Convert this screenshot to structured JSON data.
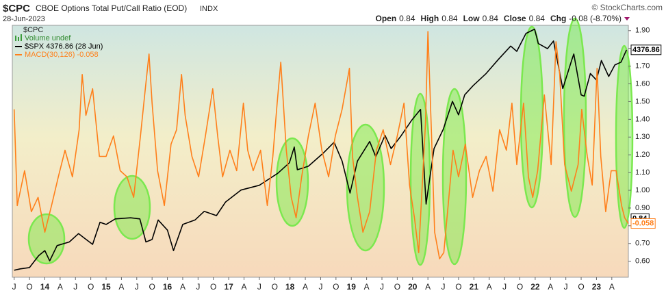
{
  "chart_data": {
    "type": "line",
    "title": "$CPC",
    "subtitle": "CBOE Options Total Put/Call Ratio (EOD)",
    "exchange": "INDX",
    "date": "28-Jun-2023",
    "credit": "© StockCharts.com",
    "quote": [
      {
        "label": "Open",
        "value": "0.84"
      },
      {
        "label": "High",
        "value": "0.84"
      },
      {
        "label": "Low",
        "value": "0.84"
      },
      {
        "label": "Close",
        "value": "0.84"
      },
      {
        "label": "Chg",
        "value": "-0.08 (-8.70%)"
      }
    ],
    "cpc_label": "$CPC",
    "volume_label": "Volume undef",
    "cpc_last": 0.84,
    "xlim": [
      2013.47,
      2023.52
    ],
    "xticks": [
      {
        "value": 2013.5,
        "label": "J"
      },
      {
        "value": 2013.75,
        "label": "O"
      },
      {
        "value": 2014,
        "label": "14"
      },
      {
        "value": 2014.25,
        "label": "A"
      },
      {
        "value": 2014.5,
        "label": "J"
      },
      {
        "value": 2014.75,
        "label": "O"
      },
      {
        "value": 2015,
        "label": "15"
      },
      {
        "value": 2015.25,
        "label": "A"
      },
      {
        "value": 2015.5,
        "label": "J"
      },
      {
        "value": 2015.75,
        "label": "O"
      },
      {
        "value": 2016,
        "label": "16"
      },
      {
        "value": 2016.25,
        "label": "A"
      },
      {
        "value": 2016.5,
        "label": "J"
      },
      {
        "value": 2016.75,
        "label": "O"
      },
      {
        "value": 2017,
        "label": "17"
      },
      {
        "value": 2017.25,
        "label": "A"
      },
      {
        "value": 2017.5,
        "label": "J"
      },
      {
        "value": 2017.75,
        "label": "O"
      },
      {
        "value": 2018,
        "label": "18"
      },
      {
        "value": 2018.25,
        "label": "A"
      },
      {
        "value": 2018.5,
        "label": "J"
      },
      {
        "value": 2018.75,
        "label": "O"
      },
      {
        "value": 2019,
        "label": "19"
      },
      {
        "value": 2019.25,
        "label": "A"
      },
      {
        "value": 2019.5,
        "label": "J"
      },
      {
        "value": 2019.75,
        "label": "O"
      },
      {
        "value": 2020,
        "label": "20"
      },
      {
        "value": 2020.25,
        "label": "A"
      },
      {
        "value": 2020.5,
        "label": "J"
      },
      {
        "value": 2020.75,
        "label": "O"
      },
      {
        "value": 2021,
        "label": "21"
      },
      {
        "value": 2021.25,
        "label": "A"
      },
      {
        "value": 2021.5,
        "label": "J"
      },
      {
        "value": 2021.75,
        "label": "O"
      },
      {
        "value": 2022,
        "label": "22"
      },
      {
        "value": 2022.25,
        "label": "A"
      },
      {
        "value": 2022.5,
        "label": "J"
      },
      {
        "value": 2022.75,
        "label": "O"
      },
      {
        "value": 2023,
        "label": "23"
      },
      {
        "value": 2023.25,
        "label": "A"
      }
    ],
    "ylim": [
      0.51,
      1.93
    ],
    "yticks": [
      {
        "value": 0.6,
        "label": "0.60"
      },
      {
        "value": 0.7,
        "label": "0.70"
      },
      {
        "value": 0.8,
        "label": "0.80"
      },
      {
        "value": 0.9,
        "label": "0.90"
      },
      {
        "value": 1.0,
        "label": "1.00"
      },
      {
        "value": 1.1,
        "label": "1.10"
      },
      {
        "value": 1.2,
        "label": "1.20"
      },
      {
        "value": 1.3,
        "label": "1.30"
      },
      {
        "value": 1.4,
        "label": "1.40"
      },
      {
        "value": 1.5,
        "label": "1.50"
      },
      {
        "value": 1.6,
        "label": "1.60"
      },
      {
        "value": 1.7,
        "label": "1.70"
      },
      {
        "value": 1.8,
        "label": "1.80"
      },
      {
        "value": 1.9,
        "label": "1.90"
      }
    ],
    "y2lim": [
      1630,
      4870
    ],
    "y2log": true,
    "y3lim": [
      -0.32,
      0.91
    ],
    "series": [
      {
        "name": "$SPX 4376.86 (28 Jun)",
        "color": "#000000",
        "axis": "y2",
        "x": [
          2013.5,
          2013.6,
          2013.75,
          2013.9,
          2014.0,
          2014.08,
          2014.2,
          2014.4,
          2014.55,
          2014.65,
          2014.78,
          2014.9,
          2015.0,
          2015.15,
          2015.4,
          2015.55,
          2015.65,
          2015.75,
          2015.85,
          2016.0,
          2016.1,
          2016.25,
          2016.45,
          2016.6,
          2016.8,
          2016.95,
          2017.2,
          2017.5,
          2017.8,
          2017.99,
          2018.07,
          2018.12,
          2018.3,
          2018.55,
          2018.72,
          2018.85,
          2018.98,
          2019.1,
          2019.3,
          2019.4,
          2019.55,
          2019.65,
          2019.8,
          2019.99,
          2020.13,
          2020.22,
          2020.35,
          2020.5,
          2020.65,
          2020.75,
          2020.85,
          2020.99,
          2021.2,
          2021.4,
          2021.6,
          2021.7,
          2021.85,
          2021.99,
          2022.05,
          2022.2,
          2022.3,
          2022.45,
          2022.6,
          2022.63,
          2022.75,
          2022.8,
          2022.9,
          2023.0,
          2023.08,
          2023.2,
          2023.3,
          2023.4,
          2023.46,
          2023.49
        ],
        "values": [
          1680,
          1690,
          1700,
          1790,
          1830,
          1750,
          1870,
          1900,
          1970,
          1930,
          1880,
          2070,
          2050,
          2100,
          2110,
          2100,
          1900,
          1920,
          2090,
          2000,
          1830,
          2050,
          2090,
          2170,
          2130,
          2260,
          2380,
          2430,
          2560,
          2680,
          2870,
          2600,
          2640,
          2800,
          2930,
          2700,
          2350,
          2700,
          2940,
          2750,
          3020,
          2850,
          3000,
          3230,
          3380,
          2240,
          2850,
          3100,
          3500,
          3300,
          3600,
          3750,
          3950,
          4200,
          4450,
          4350,
          4700,
          4790,
          4500,
          4400,
          4550,
          3700,
          4200,
          4300,
          3600,
          3580,
          3950,
          3840,
          4180,
          3900,
          4100,
          4150,
          4300,
          4376.86
        ]
      },
      {
        "name": "MACD(30,126) -0.058",
        "color": "#ff7f1a",
        "axis": "y3",
        "x": [
          2013.5,
          2013.55,
          2013.67,
          2013.78,
          2013.89,
          2014.0,
          2014.11,
          2014.22,
          2014.33,
          2014.45,
          2014.56,
          2014.61,
          2014.67,
          2014.78,
          2014.89,
          2015.0,
          2015.12,
          2015.23,
          2015.34,
          2015.45,
          2015.56,
          2015.64,
          2015.7,
          2015.75,
          2015.84,
          2015.95,
          2016.06,
          2016.15,
          2016.23,
          2016.29,
          2016.4,
          2016.51,
          2016.62,
          2016.74,
          2016.82,
          2016.9,
          2017.02,
          2017.13,
          2017.24,
          2017.31,
          2017.4,
          2017.52,
          2017.63,
          2017.72,
          2017.79,
          2017.85,
          2017.94,
          2018.02,
          2018.1,
          2018.19,
          2018.3,
          2018.41,
          2018.52,
          2018.63,
          2018.74,
          2018.85,
          2018.97,
          2019.02,
          2019.1,
          2019.19,
          2019.3,
          2019.41,
          2019.52,
          2019.64,
          2019.75,
          2019.86,
          2019.95,
          2020.03,
          2020.1,
          2020.17,
          2020.21,
          2020.25,
          2020.31,
          2020.36,
          2020.44,
          2020.51,
          2020.58,
          2020.66,
          2020.75,
          2020.86,
          2020.98,
          2021.09,
          2021.2,
          2021.31,
          2021.42,
          2021.53,
          2021.62,
          2021.7,
          2021.81,
          2021.89,
          2021.96,
          2022.04,
          2022.15,
          2022.26,
          2022.34,
          2022.4,
          2022.48,
          2022.59,
          2022.7,
          2022.76,
          2022.85,
          2022.93,
          2023.01,
          2023.07,
          2023.15,
          2023.24,
          2023.32,
          2023.41,
          2023.46,
          2023.52
        ],
        "values": [
          0.5,
          0.03,
          0.2,
          0.0,
          0.07,
          -0.1,
          0.03,
          0.17,
          0.3,
          0.17,
          0.4,
          0.67,
          0.47,
          0.6,
          0.27,
          0.27,
          0.37,
          0.2,
          0.17,
          0.07,
          0.37,
          0.6,
          0.77,
          0.53,
          0.2,
          0.03,
          0.33,
          0.4,
          0.67,
          0.47,
          0.27,
          0.17,
          0.37,
          0.6,
          0.37,
          0.17,
          0.3,
          0.2,
          0.53,
          0.3,
          0.2,
          0.3,
          0.03,
          0.27,
          0.53,
          0.73,
          0.3,
          0.07,
          -0.03,
          0.17,
          0.37,
          0.53,
          0.3,
          0.17,
          0.37,
          0.5,
          0.7,
          0.27,
          0.07,
          -0.1,
          0.0,
          0.3,
          0.4,
          0.23,
          0.37,
          0.53,
          0.13,
          -0.03,
          -0.2,
          0.2,
          0.43,
          0.88,
          0.37,
          -0.1,
          -0.23,
          -0.2,
          0.03,
          0.3,
          0.17,
          0.33,
          0.07,
          0.2,
          0.27,
          0.1,
          0.4,
          0.3,
          0.53,
          0.23,
          0.53,
          0.17,
          0.07,
          0.2,
          0.57,
          0.23,
          0.83,
          0.67,
          0.23,
          0.1,
          0.23,
          0.5,
          0.27,
          0.13,
          0.7,
          0.27,
          0.0,
          0.2,
          0.2,
          0.03,
          -0.03,
          -0.058
        ]
      }
    ]
  }
}
